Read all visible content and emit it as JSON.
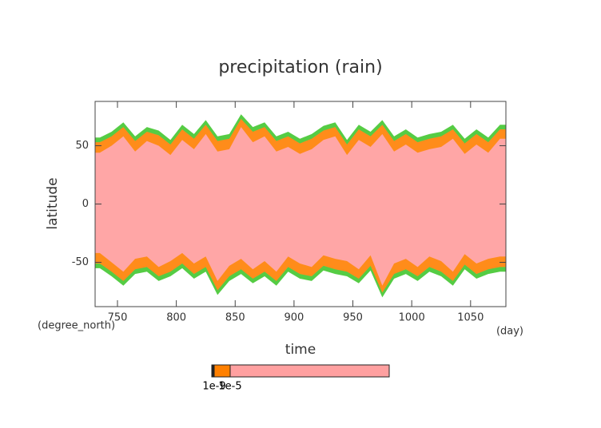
{
  "chart_data": {
    "type": "contour",
    "title": "precipitation (rain)",
    "x_label": "time",
    "y_label": "latitude",
    "x_units": "(day)",
    "y_units": "(degree_north)",
    "xlim": [
      731,
      1080
    ],
    "ylim": [
      -88,
      88
    ],
    "xticks": [
      750,
      800,
      850,
      900,
      950,
      1000,
      1050
    ],
    "yticks": [
      -50,
      0,
      50
    ],
    "x": [
      735,
      745,
      755,
      765,
      775,
      785,
      795,
      805,
      815,
      825,
      835,
      845,
      855,
      865,
      875,
      885,
      895,
      905,
      915,
      925,
      935,
      945,
      955,
      965,
      975,
      985,
      995,
      1005,
      1015,
      1025,
      1035,
      1045,
      1055,
      1065,
      1075
    ],
    "layers": [
      {
        "color": "#55cc44",
        "north": [
          57,
          62,
          70,
          58,
          66,
          63,
          55,
          68,
          60,
          72,
          58,
          60,
          77,
          66,
          70,
          58,
          62,
          56,
          60,
          67,
          70,
          55,
          68,
          62,
          72,
          58,
          64,
          57,
          60,
          62,
          68,
          56,
          64,
          57,
          68
        ],
        "south": [
          -55,
          -62,
          -70,
          -60,
          -58,
          -66,
          -62,
          -55,
          -64,
          -58,
          -78,
          -66,
          -60,
          -68,
          -62,
          -70,
          -58,
          -64,
          -66,
          -57,
          -60,
          -62,
          -68,
          -57,
          -80,
          -64,
          -60,
          -66,
          -58,
          -62,
          -70,
          -56,
          -64,
          -60,
          -58
        ]
      },
      {
        "color": "#ff8c1a",
        "north": [
          53,
          58,
          66,
          54,
          62,
          59,
          51,
          64,
          56,
          68,
          54,
          56,
          73,
          62,
          66,
          54,
          58,
          52,
          56,
          63,
          66,
          51,
          64,
          58,
          68,
          54,
          60,
          53,
          56,
          58,
          64,
          52,
          60,
          53,
          64
        ],
        "south": [
          -51,
          -58,
          -66,
          -56,
          -54,
          -62,
          -58,
          -51,
          -60,
          -54,
          -74,
          -62,
          -56,
          -64,
          -58,
          -66,
          -54,
          -60,
          -62,
          -53,
          -56,
          -58,
          -64,
          -53,
          -76,
          -60,
          -56,
          -62,
          -54,
          -58,
          -66,
          -52,
          -60,
          -56,
          -54
        ]
      },
      {
        "color": "#ffa6a6",
        "north": [
          44,
          50,
          58,
          45,
          54,
          50,
          42,
          55,
          47,
          60,
          45,
          47,
          66,
          53,
          58,
          45,
          49,
          43,
          47,
          55,
          58,
          42,
          55,
          49,
          60,
          45,
          51,
          44,
          47,
          49,
          56,
          43,
          51,
          44,
          56
        ],
        "south": [
          -42,
          -50,
          -58,
          -47,
          -45,
          -54,
          -49,
          -42,
          -51,
          -45,
          -66,
          -53,
          -47,
          -56,
          -49,
          -58,
          -45,
          -51,
          -54,
          -44,
          -47,
          -49,
          -56,
          -44,
          -70,
          -51,
          -47,
          -54,
          -45,
          -49,
          -58,
          -43,
          -51,
          -47,
          -45
        ]
      }
    ],
    "colorbar": {
      "colors": [
        "#222222",
        "#ff8000",
        "#ffa0a0"
      ],
      "ticks": [
        {
          "value": 1e-09,
          "label": "1e-9"
        },
        {
          "value": 1e-05,
          "label": "1e-5"
        }
      ]
    }
  }
}
